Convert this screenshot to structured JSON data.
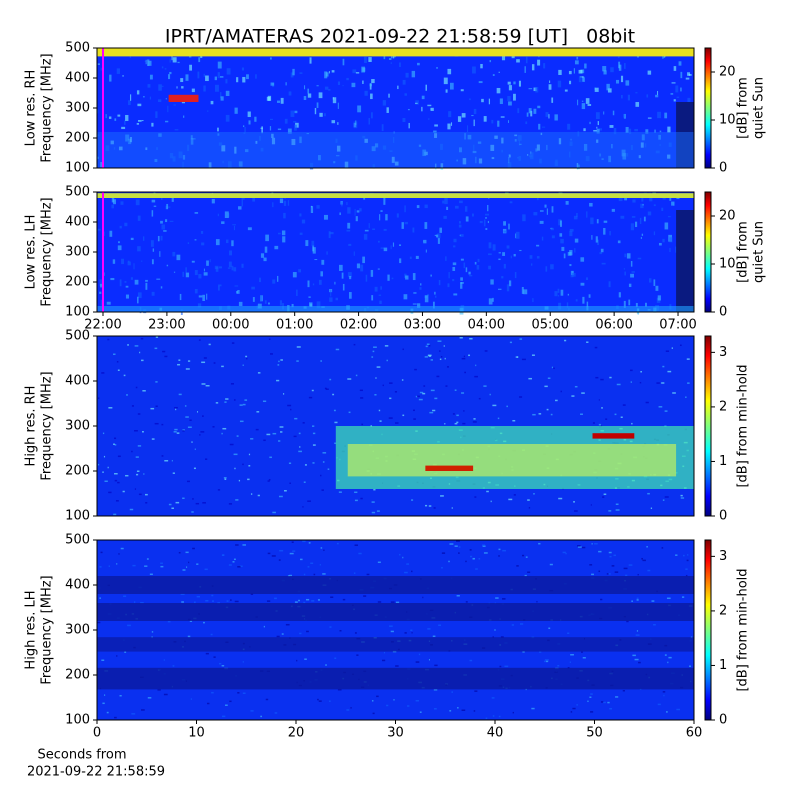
{
  "chart_data": [
    {
      "type": "spectrogram",
      "title": "IPRT/AMATERAS 2021-09-22 21:58:59 [UT]   08bit",
      "ylabel": [
        "Low res. RH",
        "Frequency [MHz]"
      ],
      "ylim": [
        100,
        500
      ],
      "yticks": [
        100,
        200,
        300,
        400,
        500
      ],
      "colorbar_label": [
        "[dB] from",
        "quiet Sun"
      ],
      "clim": [
        0,
        25
      ],
      "cticks": [
        0,
        10,
        20
      ]
    },
    {
      "type": "spectrogram",
      "ylabel": [
        "Low res. LH",
        "Frequency [MHz]"
      ],
      "ylim": [
        100,
        500
      ],
      "yticks": [
        100,
        200,
        300,
        400,
        500
      ],
      "xlim": [
        21.906,
        31.25
      ],
      "xticks": [
        {
          "value": 22,
          "label": "22:00"
        },
        {
          "value": 23,
          "label": "23:00"
        },
        {
          "value": 24,
          "label": "00:00"
        },
        {
          "value": 25,
          "label": "01:00"
        },
        {
          "value": 26,
          "label": "02:00"
        },
        {
          "value": 27,
          "label": "03:00"
        },
        {
          "value": 28,
          "label": "04:00"
        },
        {
          "value": 29,
          "label": "05:00"
        },
        {
          "value": 30,
          "label": "06:00"
        },
        {
          "value": 31,
          "label": "07:00"
        }
      ],
      "colorbar_label": [
        "[dB] from",
        "quiet Sun"
      ],
      "clim": [
        0,
        25
      ],
      "cticks": [
        0,
        10,
        20
      ]
    },
    {
      "type": "spectrogram",
      "ylabel": [
        "High res. RH",
        "Frequency [MHz]"
      ],
      "ylim": [
        100,
        500
      ],
      "yticks": [
        100,
        200,
        300,
        400,
        500
      ],
      "colorbar_label": [
        "[dB] from min-hold"
      ],
      "clim": [
        0,
        3.3
      ],
      "cticks": [
        0,
        1,
        2,
        3
      ]
    },
    {
      "type": "spectrogram",
      "ylabel": [
        "High res. LH",
        "Frequency [MHz]"
      ],
      "ylim": [
        100,
        500
      ],
      "yticks": [
        100,
        200,
        300,
        400,
        500
      ],
      "xlim": [
        0,
        60
      ],
      "xticks": [
        0,
        10,
        20,
        30,
        40,
        50,
        60
      ],
      "xlabel": [
        "Seconds from",
        "2021-09-22 21:58:59"
      ],
      "colorbar_label": [
        "[dB] from min-hold"
      ],
      "clim": [
        0,
        3.3
      ],
      "cticks": [
        0,
        1,
        2,
        3
      ]
    }
  ]
}
